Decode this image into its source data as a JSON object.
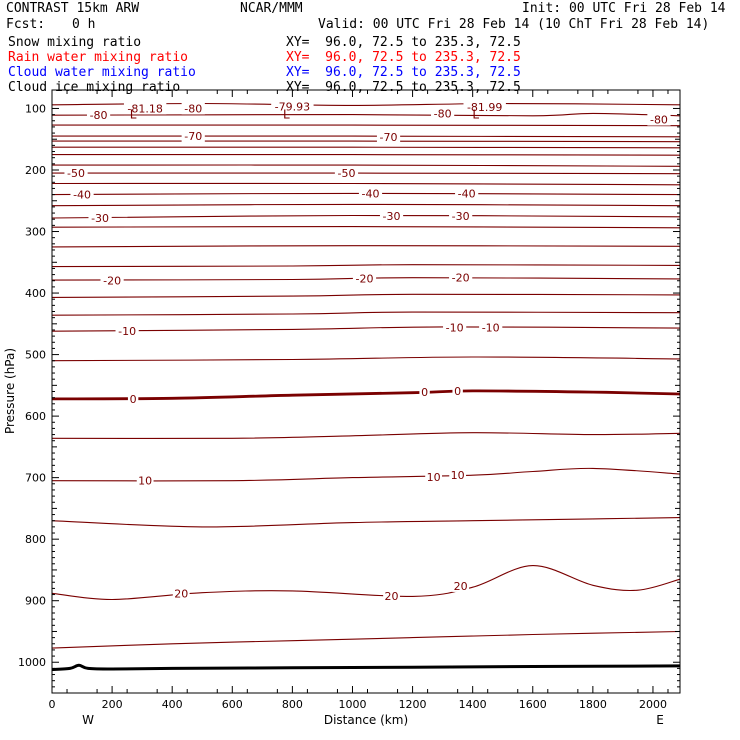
{
  "header": {
    "model": "CONTRAST 15km ARW",
    "org": "NCAR/MMM",
    "init": "Init: 00 UTC Fri 28 Feb 14",
    "fcst_label": "Fcst:",
    "fcst_value": "0 h",
    "valid": "Valid: 00 UTC Fri 28 Feb 14 (10 ChT Fri 28 Feb 14)"
  },
  "fields": [
    {
      "label": "Snow mixing ratio",
      "xy": "XY=  96.0, 72.5 to 235.3, 72.5",
      "color": "#000000"
    },
    {
      "label": "Rain water mixing ratio",
      "xy": "XY=  96.0, 72.5 to 235.3, 72.5",
      "color": "#ff0000"
    },
    {
      "label": "Cloud water mixing ratio",
      "xy": "XY=  96.0, 72.5 to 235.3, 72.5",
      "color": "#0000ff"
    },
    {
      "label": "Cloud ice mixing ratio",
      "xy": "XY=  96.0, 72.5 to 235.3, 72.5",
      "color": "#000000"
    }
  ],
  "colors": {
    "isotherm": "#7a0000",
    "terrain": "#000000",
    "frame": "#000000"
  },
  "chart_data": {
    "type": "line",
    "xlabel": "Distance (km)",
    "ylabel": "Pressure (hPa)",
    "xlim": [
      0,
      2090
    ],
    "ylim": [
      1050,
      70
    ],
    "x_ticks": [
      0,
      200,
      400,
      600,
      800,
      1000,
      1200,
      1400,
      1600,
      1800,
      2000
    ],
    "x_tick_labels": [
      "0",
      "200",
      "400",
      "600",
      "800",
      "1000",
      "1200",
      "1400",
      "1600",
      "1800",
      "2000"
    ],
    "y_ticks": [
      100,
      200,
      300,
      400,
      500,
      600,
      700,
      800,
      900,
      1000
    ],
    "y_tick_labels": [
      "100",
      "200",
      "300",
      "400",
      "500",
      "600",
      "700",
      "800",
      "900",
      "1000"
    ],
    "left_end": "W",
    "right_end": "E",
    "contour_interval": 5,
    "contours": [
      {
        "value": -80,
        "points": [
          [
            0,
            94
          ],
          [
            500,
            92
          ],
          [
            1000,
            95
          ],
          [
            1500,
            92
          ],
          [
            2090,
            94
          ]
        ]
      },
      {
        "value": -80,
        "points": [
          [
            0,
            111
          ],
          [
            1000,
            110
          ],
          [
            1600,
            112
          ],
          [
            1800,
            108
          ],
          [
            2090,
            112
          ]
        ]
      },
      {
        "value": -75,
        "points": [
          [
            0,
            127
          ],
          [
            1000,
            127
          ],
          [
            2090,
            128
          ]
        ]
      },
      {
        "value": -70,
        "points": [
          [
            0,
            145
          ],
          [
            1000,
            145
          ],
          [
            2090,
            146
          ]
        ]
      },
      {
        "value": -70,
        "points": [
          [
            0,
            153
          ],
          [
            1000,
            153
          ],
          [
            2090,
            154
          ]
        ]
      },
      {
        "value": -70,
        "points": [
          [
            0,
            163
          ],
          [
            1000,
            163
          ],
          [
            2090,
            164
          ]
        ]
      },
      {
        "value": -65,
        "points": [
          [
            0,
            175
          ],
          [
            1000,
            175
          ],
          [
            2090,
            176
          ]
        ]
      },
      {
        "value": -55,
        "points": [
          [
            0,
            192
          ],
          [
            1000,
            192
          ],
          [
            2090,
            194
          ]
        ]
      },
      {
        "value": -50,
        "points": [
          [
            0,
            205
          ],
          [
            1000,
            205
          ],
          [
            2090,
            206
          ]
        ]
      },
      {
        "value": -45,
        "points": [
          [
            0,
            222
          ],
          [
            1000,
            222
          ],
          [
            2090,
            224
          ]
        ]
      },
      {
        "value": -40,
        "points": [
          [
            0,
            240
          ],
          [
            1000,
            238
          ],
          [
            2090,
            240
          ]
        ]
      },
      {
        "value": -35,
        "points": [
          [
            0,
            258
          ],
          [
            1000,
            256
          ],
          [
            2090,
            258
          ]
        ]
      },
      {
        "value": -30,
        "points": [
          [
            0,
            278
          ],
          [
            1000,
            274
          ],
          [
            2090,
            276
          ]
        ]
      },
      {
        "value": -30,
        "points": [
          [
            0,
            293
          ],
          [
            1000,
            292
          ],
          [
            2090,
            294
          ]
        ]
      },
      {
        "value": -25,
        "points": [
          [
            0,
            325
          ],
          [
            1000,
            323
          ],
          [
            2090,
            324
          ]
        ]
      },
      {
        "value": -20,
        "points": [
          [
            0,
            357
          ],
          [
            800,
            356
          ],
          [
            1200,
            354
          ],
          [
            2090,
            355
          ]
        ]
      },
      {
        "value": -20,
        "points": [
          [
            0,
            379
          ],
          [
            800,
            378
          ],
          [
            1200,
            375
          ],
          [
            2090,
            377
          ]
        ]
      },
      {
        "value": -15,
        "points": [
          [
            0,
            407
          ],
          [
            800,
            405
          ],
          [
            1200,
            402
          ],
          [
            2090,
            403
          ]
        ]
      },
      {
        "value": -15,
        "points": [
          [
            0,
            436
          ],
          [
            800,
            434
          ],
          [
            1200,
            431
          ],
          [
            2090,
            432
          ]
        ]
      },
      {
        "value": -10,
        "points": [
          [
            0,
            462
          ],
          [
            800,
            459
          ],
          [
            1300,
            455
          ],
          [
            2090,
            457
          ]
        ]
      },
      {
        "value": -5,
        "points": [
          [
            0,
            510
          ],
          [
            800,
            508
          ],
          [
            1400,
            504
          ],
          [
            2090,
            507
          ]
        ]
      },
      {
        "value": 0,
        "points": [
          [
            0,
            572
          ],
          [
            400,
            571
          ],
          [
            800,
            566
          ],
          [
            1200,
            562
          ],
          [
            1400,
            559
          ],
          [
            1800,
            561
          ],
          [
            2090,
            564
          ]
        ]
      },
      {
        "value": 5,
        "points": [
          [
            0,
            636
          ],
          [
            600,
            636
          ],
          [
            1000,
            632
          ],
          [
            1400,
            627
          ],
          [
            1800,
            630
          ],
          [
            2090,
            628
          ]
        ]
      },
      {
        "value": 10,
        "points": [
          [
            0,
            705
          ],
          [
            600,
            705
          ],
          [
            1000,
            700
          ],
          [
            1400,
            696
          ],
          [
            1600,
            690
          ],
          [
            1800,
            685
          ],
          [
            2090,
            694
          ]
        ]
      },
      {
        "value": 15,
        "points": [
          [
            0,
            770
          ],
          [
            500,
            780
          ],
          [
            1000,
            773
          ],
          [
            1400,
            770
          ],
          [
            1800,
            767
          ],
          [
            2090,
            765
          ]
        ]
      },
      {
        "value": 20,
        "points": [
          [
            0,
            888
          ],
          [
            200,
            898
          ],
          [
            500,
            887
          ],
          [
            800,
            884
          ],
          [
            1200,
            893
          ],
          [
            1400,
            878
          ],
          [
            1600,
            843
          ],
          [
            1800,
            875
          ],
          [
            1950,
            883
          ],
          [
            2090,
            865
          ]
        ]
      },
      {
        "value": 25,
        "points": [
          [
            0,
            977
          ],
          [
            400,
            970
          ],
          [
            800,
            965
          ],
          [
            1200,
            960
          ],
          [
            1600,
            955
          ],
          [
            2090,
            950
          ]
        ]
      }
    ],
    "contour_labels": [
      {
        "text": "-80",
        "x": 155,
        "p": 111
      },
      {
        "text": "-81.18",
        "x": 310,
        "p": 100
      },
      {
        "text": "-80",
        "x": 470,
        "p": 100
      },
      {
        "text": "-79.93",
        "x": 800,
        "p": 97
      },
      {
        "text": "-80",
        "x": 1300,
        "p": 108
      },
      {
        "text": "-81.99",
        "x": 1440,
        "p": 98
      },
      {
        "text": "-80",
        "x": 2020,
        "p": 118
      },
      {
        "text": "-70",
        "x": 470,
        "p": 145
      },
      {
        "text": "-70",
        "x": 1120,
        "p": 146
      },
      {
        "text": "-50",
        "x": 80,
        "p": 205
      },
      {
        "text": "-50",
        "x": 980,
        "p": 205
      },
      {
        "text": "-40",
        "x": 100,
        "p": 240
      },
      {
        "text": "-40",
        "x": 1060,
        "p": 238
      },
      {
        "text": "-40",
        "x": 1380,
        "p": 238
      },
      {
        "text": "-30",
        "x": 160,
        "p": 278
      },
      {
        "text": "-30",
        "x": 1130,
        "p": 275
      },
      {
        "text": "-30",
        "x": 1360,
        "p": 275
      },
      {
        "text": "-20",
        "x": 200,
        "p": 380
      },
      {
        "text": "-20",
        "x": 1040,
        "p": 376
      },
      {
        "text": "-20",
        "x": 1360,
        "p": 375
      },
      {
        "text": "-10",
        "x": 250,
        "p": 462
      },
      {
        "text": "-10",
        "x": 1340,
        "p": 456
      },
      {
        "text": "-10",
        "x": 1460,
        "p": 456
      },
      {
        "text": "0",
        "x": 270,
        "p": 572
      },
      {
        "text": "0",
        "x": 1240,
        "p": 561
      },
      {
        "text": "0",
        "x": 1350,
        "p": 559
      },
      {
        "text": "10",
        "x": 310,
        "p": 705
      },
      {
        "text": "10",
        "x": 1270,
        "p": 699
      },
      {
        "text": "10",
        "x": 1350,
        "p": 696
      },
      {
        "text": "20",
        "x": 430,
        "p": 888
      },
      {
        "text": "20",
        "x": 1130,
        "p": 892
      },
      {
        "text": "20",
        "x": 1360,
        "p": 876
      }
    ],
    "lows": [
      {
        "text": "L",
        "x": 270,
        "p": 90
      },
      {
        "text": "L",
        "x": 780,
        "p": 90
      },
      {
        "text": "L",
        "x": 1410,
        "p": 90
      }
    ],
    "terrain": {
      "points": [
        [
          0,
          1012
        ],
        [
          60,
          1010
        ],
        [
          90,
          1005
        ],
        [
          120,
          1010
        ],
        [
          200,
          1011
        ],
        [
          400,
          1010
        ],
        [
          800,
          1009
        ],
        [
          1200,
          1008
        ],
        [
          1600,
          1007
        ],
        [
          2090,
          1006
        ]
      ]
    }
  }
}
